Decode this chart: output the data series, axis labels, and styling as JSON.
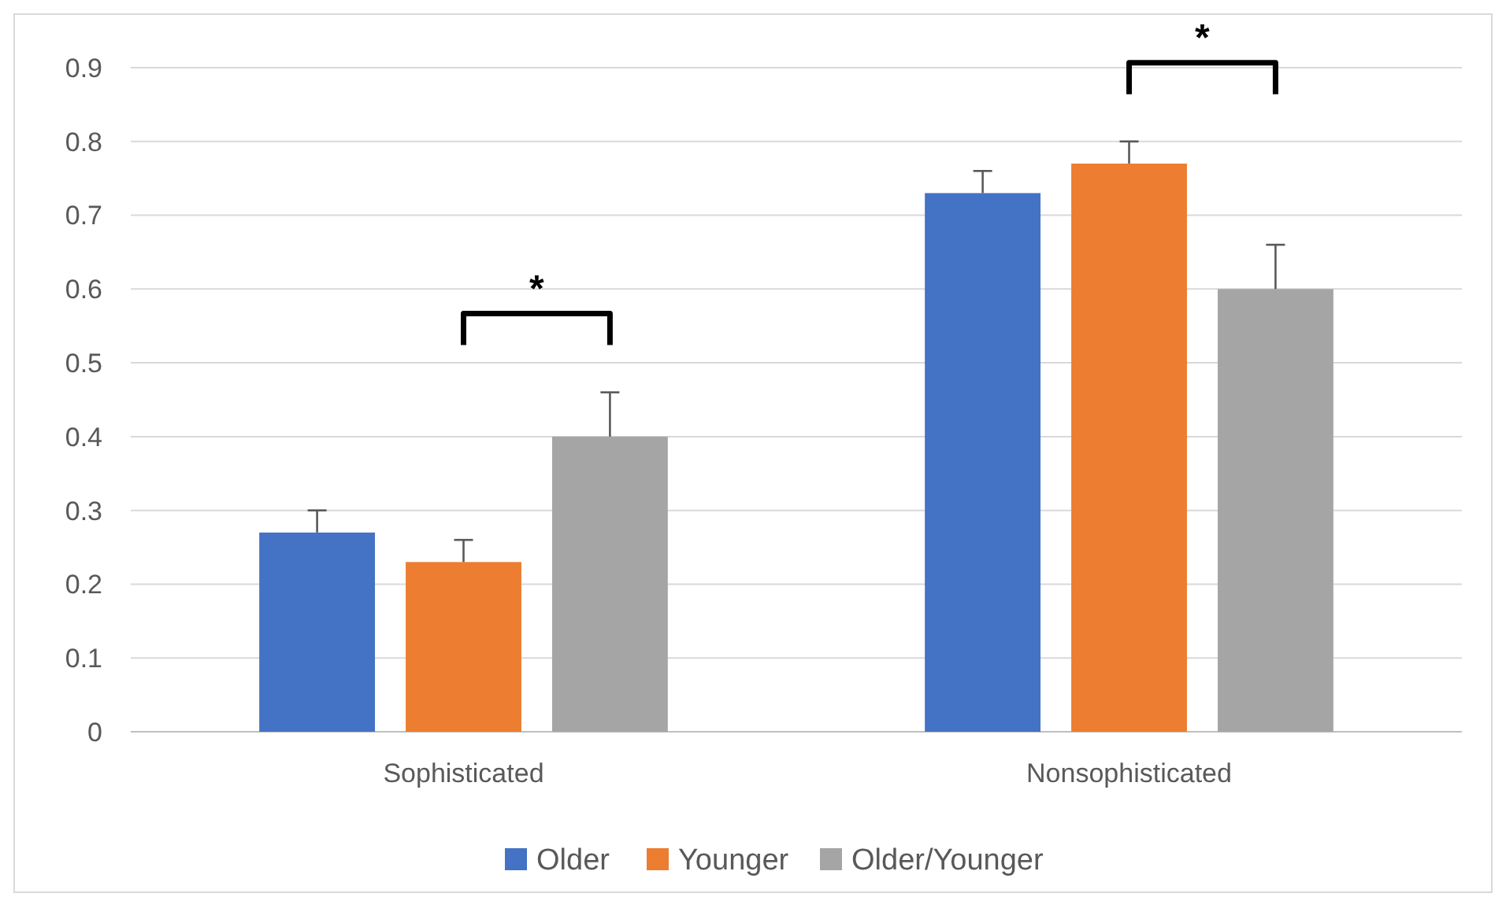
{
  "chart_data": {
    "type": "bar",
    "categories": [
      "Sophisticated",
      "Nonsophisticated"
    ],
    "series": [
      {
        "name": "Older",
        "color": "#4472c4",
        "values": [
          0.27,
          0.73
        ],
        "errors": [
          [
            0.27,
            0.3
          ],
          [
            0.73,
            0.76
          ]
        ]
      },
      {
        "name": "Younger",
        "color": "#ed7d31",
        "values": [
          0.23,
          0.77
        ],
        "errors": [
          [
            0.23,
            0.26
          ],
          [
            0.77,
            0.8
          ]
        ]
      },
      {
        "name": "Older/Younger",
        "color": "#a5a5a5",
        "values": [
          0.4,
          0.6
        ],
        "errors": [
          [
            0.4,
            0.46
          ],
          [
            0.6,
            0.66
          ]
        ]
      }
    ],
    "ylim": [
      0,
      0.9
    ],
    "yticks": [
      0,
      0.1,
      0.2,
      0.3,
      0.4,
      0.5,
      0.6,
      0.7,
      0.8,
      0.9
    ],
    "grid": "y",
    "legend": "bottom",
    "annotations": [
      "*",
      "*"
    ]
  }
}
